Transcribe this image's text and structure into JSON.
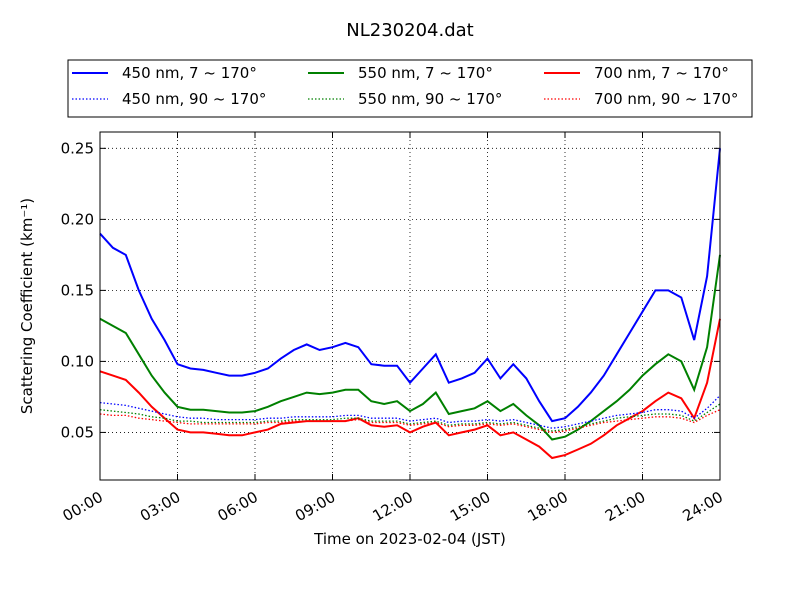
{
  "chart_data": {
    "type": "line",
    "title": "NL230204.dat",
    "x_label": "Time on 2023-02-04 (JST)",
    "y_label": "Scattering Coefficient (km⁻¹)",
    "x": [
      "00:00",
      "00:30",
      "01:00",
      "01:30",
      "02:00",
      "02:30",
      "03:00",
      "03:30",
      "04:00",
      "04:30",
      "05:00",
      "05:30",
      "06:00",
      "06:30",
      "07:00",
      "07:30",
      "08:00",
      "08:30",
      "09:00",
      "09:30",
      "10:00",
      "10:30",
      "11:00",
      "11:30",
      "12:00",
      "12:30",
      "13:00",
      "13:30",
      "14:00",
      "14:30",
      "15:00",
      "15:30",
      "16:00",
      "16:30",
      "17:00",
      "17:30",
      "18:00",
      "18:30",
      "19:00",
      "19:30",
      "20:00",
      "20:30",
      "21:00",
      "21:30",
      "22:00",
      "22:30",
      "23:00",
      "23:30",
      "24:00"
    ],
    "xlim": [
      "00:00",
      "24:00"
    ],
    "xticks": [
      "00:00",
      "03:00",
      "06:00",
      "09:00",
      "12:00",
      "15:00",
      "18:00",
      "21:00",
      "24:00"
    ],
    "ylim": [
      0.0165,
      0.2615
    ],
    "yticks": [
      0.05,
      {
        "value": 0.1,
        "label": "0.10"
      },
      0.15,
      {
        "value": 0.2,
        "label": "0.20"
      },
      0.25
    ],
    "grid": true,
    "legend_position": "top",
    "series": [
      {
        "name": "450 nm, 7 ~ 170°",
        "color": "#0000ff",
        "linestyle": "solid",
        "values": [
          0.19,
          0.18,
          0.175,
          0.15,
          0.13,
          0.115,
          0.098,
          0.095,
          0.094,
          0.092,
          0.09,
          0.09,
          0.092,
          0.095,
          0.102,
          0.108,
          0.112,
          0.108,
          0.11,
          0.113,
          0.11,
          0.098,
          0.097,
          0.097,
          0.085,
          0.095,
          0.105,
          0.085,
          0.088,
          0.092,
          0.102,
          0.088,
          0.098,
          0.088,
          0.072,
          0.058,
          0.06,
          0.068,
          0.078,
          0.09,
          0.105,
          0.12,
          0.135,
          0.15,
          0.15,
          0.145,
          0.115,
          0.16,
          0.25
        ]
      },
      {
        "name": "550 nm, 7 ~ 170°",
        "color": "#008000",
        "linestyle": "solid",
        "values": [
          0.13,
          0.125,
          0.12,
          0.105,
          0.09,
          0.078,
          0.068,
          0.066,
          0.066,
          0.065,
          0.064,
          0.064,
          0.065,
          0.068,
          0.072,
          0.075,
          0.078,
          0.077,
          0.078,
          0.08,
          0.08,
          0.072,
          0.07,
          0.072,
          0.065,
          0.07,
          0.078,
          0.063,
          0.065,
          0.067,
          0.072,
          0.065,
          0.07,
          0.062,
          0.055,
          0.045,
          0.047,
          0.052,
          0.058,
          0.065,
          0.072,
          0.08,
          0.09,
          0.098,
          0.105,
          0.1,
          0.08,
          0.11,
          0.175
        ]
      },
      {
        "name": "700 nm, 7 ~ 170°",
        "color": "#ff0000",
        "linestyle": "solid",
        "values": [
          0.093,
          0.09,
          0.087,
          0.078,
          0.068,
          0.06,
          0.052,
          0.05,
          0.05,
          0.049,
          0.048,
          0.048,
          0.05,
          0.052,
          0.056,
          0.057,
          0.058,
          0.058,
          0.058,
          0.058,
          0.06,
          0.055,
          0.054,
          0.055,
          0.05,
          0.054,
          0.057,
          0.048,
          0.05,
          0.052,
          0.055,
          0.048,
          0.05,
          0.045,
          0.04,
          0.032,
          0.034,
          0.038,
          0.042,
          0.048,
          0.055,
          0.06,
          0.065,
          0.072,
          0.078,
          0.074,
          0.06,
          0.085,
          0.13
        ]
      },
      {
        "name": "450 nm, 90 ~ 170°",
        "color": "#0000ff",
        "linestyle": "dotted",
        "values": [
          0.071,
          0.07,
          0.069,
          0.067,
          0.065,
          0.063,
          0.061,
          0.06,
          0.06,
          0.059,
          0.059,
          0.059,
          0.059,
          0.06,
          0.06,
          0.061,
          0.061,
          0.061,
          0.061,
          0.062,
          0.062,
          0.06,
          0.06,
          0.06,
          0.058,
          0.059,
          0.06,
          0.057,
          0.058,
          0.058,
          0.059,
          0.058,
          0.059,
          0.057,
          0.055,
          0.053,
          0.054,
          0.056,
          0.058,
          0.06,
          0.062,
          0.063,
          0.064,
          0.066,
          0.066,
          0.065,
          0.06,
          0.067,
          0.076
        ]
      },
      {
        "name": "550 nm, 90 ~ 170°",
        "color": "#008000",
        "linestyle": "dotted",
        "values": [
          0.066,
          0.065,
          0.064,
          0.063,
          0.061,
          0.06,
          0.058,
          0.058,
          0.057,
          0.057,
          0.057,
          0.057,
          0.057,
          0.058,
          0.058,
          0.059,
          0.059,
          0.059,
          0.059,
          0.06,
          0.06,
          0.058,
          0.058,
          0.058,
          0.056,
          0.057,
          0.058,
          0.055,
          0.056,
          0.056,
          0.057,
          0.056,
          0.057,
          0.055,
          0.053,
          0.051,
          0.052,
          0.054,
          0.056,
          0.058,
          0.06,
          0.061,
          0.062,
          0.063,
          0.063,
          0.062,
          0.058,
          0.064,
          0.07
        ]
      },
      {
        "name": "700 nm, 90 ~ 170°",
        "color": "#ff0000",
        "linestyle": "dotted",
        "values": [
          0.063,
          0.062,
          0.062,
          0.06,
          0.059,
          0.058,
          0.057,
          0.056,
          0.056,
          0.056,
          0.056,
          0.056,
          0.056,
          0.057,
          0.057,
          0.058,
          0.058,
          0.058,
          0.058,
          0.058,
          0.059,
          0.057,
          0.057,
          0.057,
          0.055,
          0.056,
          0.057,
          0.054,
          0.055,
          0.055,
          0.056,
          0.055,
          0.056,
          0.054,
          0.052,
          0.05,
          0.051,
          0.053,
          0.055,
          0.057,
          0.058,
          0.059,
          0.06,
          0.061,
          0.061,
          0.06,
          0.057,
          0.062,
          0.066
        ]
      }
    ]
  }
}
